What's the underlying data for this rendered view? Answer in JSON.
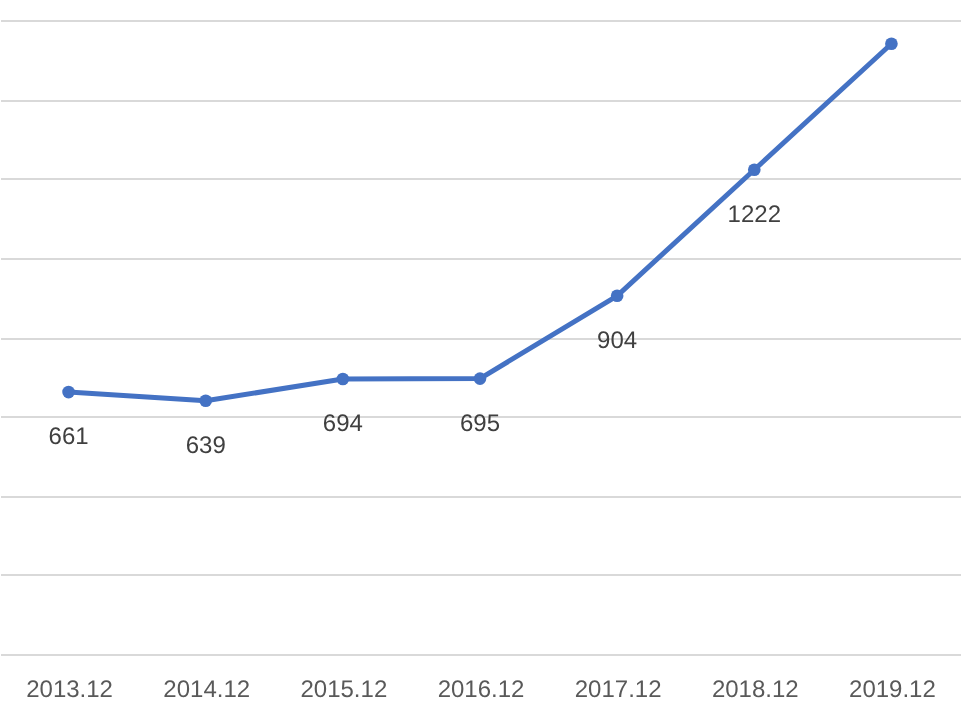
{
  "chart_data": {
    "type": "line",
    "categories": [
      "2013.12",
      "2014.12",
      "2015.12",
      "2016.12",
      "2017.12",
      "2018.12",
      "2019.12"
    ],
    "series": [
      {
        "color": "#4472c4",
        "values": [
          661,
          639,
          694,
          695,
          904,
          1222,
          1540
        ],
        "value_labels": [
          "661",
          "639",
          "694",
          "695",
          "904",
          "1222",
          null
        ]
      }
    ],
    "tick_labels": "x",
    "grid": "y",
    "marker": "circle",
    "line_style": "solid"
  }
}
